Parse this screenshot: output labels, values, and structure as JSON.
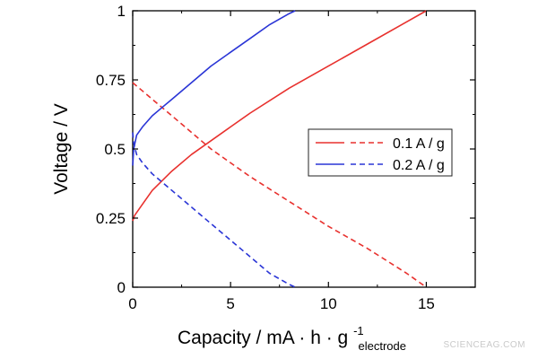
{
  "chart_data": {
    "type": "line",
    "title": "",
    "xlabel": "Capacity / mA · h · g",
    "xlabel_superscript": "-1",
    "xlabel_subscript": "electrode",
    "ylabel": "Voltage / V",
    "xlim": [
      0,
      17.5
    ],
    "ylim": [
      0,
      1
    ],
    "xticks": [
      0,
      5,
      10,
      15
    ],
    "yticks": [
      0,
      0.25,
      0.5,
      0.75,
      1
    ],
    "ytick_labels": [
      "0",
      "0.25",
      "0.5",
      "0.75",
      "1"
    ],
    "grid": false,
    "legend_position": "center-right",
    "legend": [
      {
        "label": "0.1 A / g",
        "color": "#e8312e"
      },
      {
        "label": "0.2 A / g",
        "color": "#2a35d6"
      }
    ],
    "series": [
      {
        "name": "0.1 A / g charge",
        "color": "#e8312e",
        "dash": "solid",
        "x": [
          0,
          0.1,
          0.5,
          1,
          2,
          3,
          4,
          5,
          6,
          8,
          10,
          12,
          14,
          15
        ],
        "y": [
          0.24,
          0.26,
          0.3,
          0.35,
          0.42,
          0.48,
          0.53,
          0.58,
          0.63,
          0.72,
          0.8,
          0.88,
          0.96,
          1.0
        ]
      },
      {
        "name": "0.1 A / g discharge",
        "color": "#e8312e",
        "dash": "dashed",
        "x": [
          0,
          0.5,
          1,
          2,
          3,
          4,
          5,
          6,
          8,
          10,
          12,
          14,
          15
        ],
        "y": [
          0.74,
          0.71,
          0.68,
          0.62,
          0.56,
          0.5,
          0.45,
          0.4,
          0.31,
          0.22,
          0.14,
          0.05,
          0.0
        ]
      },
      {
        "name": "0.2 A / g charge",
        "color": "#2a35d6",
        "dash": "solid",
        "x": [
          0,
          0.05,
          0.2,
          0.5,
          1,
          1.5,
          2,
          3,
          4,
          5,
          6,
          7,
          8,
          8.3
        ],
        "y": [
          0.44,
          0.5,
          0.55,
          0.58,
          0.62,
          0.65,
          0.68,
          0.74,
          0.8,
          0.85,
          0.9,
          0.95,
          0.99,
          1.0
        ]
      },
      {
        "name": "0.2 A / g discharge",
        "color": "#2a35d6",
        "dash": "dashed",
        "x": [
          0,
          0.05,
          0.2,
          0.5,
          1,
          2,
          3,
          4,
          5,
          6,
          7,
          8,
          8.3
        ],
        "y": [
          0.56,
          0.52,
          0.48,
          0.45,
          0.41,
          0.35,
          0.29,
          0.23,
          0.17,
          0.11,
          0.05,
          0.01,
          0.0
        ]
      }
    ]
  },
  "watermark": "SCIENCEAG.COM"
}
